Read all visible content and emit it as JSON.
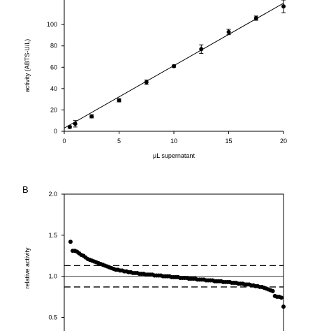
{
  "chart_data": [
    {
      "type": "scatter",
      "title": "",
      "xlabel": "µL supernatant",
      "ylabel": "activity (ABTS-U/L)",
      "xlim": [
        0,
        20
      ],
      "ylim": [
        0,
        120
      ],
      "x_ticks": [
        "0",
        "5",
        "10",
        "15",
        "20"
      ],
      "y_ticks": [
        "0",
        "20",
        "40",
        "60",
        "80",
        "100"
      ],
      "grid": false,
      "fit": "linear",
      "fit_line": [
        [
          0,
          3
        ],
        [
          20,
          120
        ]
      ],
      "series": [
        {
          "x": [
            0.5,
            1,
            2.5,
            5,
            7.5,
            10,
            12.5,
            15,
            17.5,
            20
          ],
          "y": [
            4,
            7,
            14,
            29,
            46,
            61,
            77,
            93,
            106,
            117
          ],
          "error": [
            1,
            3,
            1.5,
            1.5,
            2,
            1,
            4,
            2.5,
            2,
            6
          ]
        }
      ]
    },
    {
      "type": "scatter",
      "panel_label": "B",
      "title": "",
      "xlabel": "",
      "ylabel": "relative activity",
      "ylim": [
        0.3,
        2.0
      ],
      "y_ticks": [
        "0.5",
        "1.0",
        "1.5",
        "2.0"
      ],
      "grid": false,
      "reference_lines": [
        {
          "y": 1.0,
          "style": "solid"
        },
        {
          "y": 1.13,
          "style": "dashed"
        },
        {
          "y": 0.87,
          "style": "dashed"
        }
      ],
      "series": [
        {
          "y": [
            1.42,
            1.31,
            1.31,
            1.3,
            1.28,
            1.26,
            1.25,
            1.23,
            1.21,
            1.2,
            1.19,
            1.18,
            1.17,
            1.16,
            1.15,
            1.14,
            1.13,
            1.12,
            1.11,
            1.1,
            1.09,
            1.08,
            1.08,
            1.07,
            1.07,
            1.06,
            1.06,
            1.05,
            1.05,
            1.04,
            1.04,
            1.04,
            1.03,
            1.03,
            1.03,
            1.02,
            1.02,
            1.02,
            1.02,
            1.01,
            1.01,
            1.01,
            1.01,
            1.0,
            1.0,
            1.0,
            1.0,
            0.99,
            0.99,
            0.99,
            0.99,
            0.98,
            0.98,
            0.98,
            0.98,
            0.97,
            0.97,
            0.97,
            0.97,
            0.96,
            0.96,
            0.96,
            0.96,
            0.95,
            0.95,
            0.95,
            0.95,
            0.94,
            0.94,
            0.94,
            0.94,
            0.93,
            0.93,
            0.93,
            0.93,
            0.92,
            0.92,
            0.92,
            0.91,
            0.91,
            0.91,
            0.9,
            0.9,
            0.9,
            0.89,
            0.89,
            0.88,
            0.88,
            0.87,
            0.87,
            0.86,
            0.85,
            0.84,
            0.83,
            0.82,
            0.76,
            0.75,
            0.75,
            0.74,
            0.63
          ]
        }
      ]
    }
  ]
}
